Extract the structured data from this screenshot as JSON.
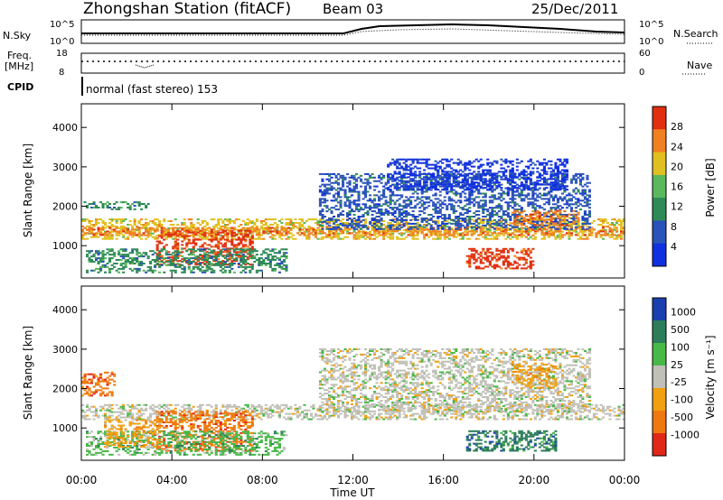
{
  "header": {
    "title": "Zhongshan Station (fitACF)",
    "beam": "Beam 03",
    "date": "25/Dec/2011"
  },
  "top_panels": {
    "nsky_label": "N.Sky",
    "nsearch_label": "N.Search",
    "freq_label_1": "Freq.",
    "freq_label_2": "[MHz]",
    "nave_label": "Nave",
    "cpid_label": "CPID",
    "cpid_text": "normal (fast stereo) 153",
    "noise_ticks_left": [
      "10^5",
      "10^0"
    ],
    "noise_ticks_right": [
      "10^5",
      "10^0"
    ],
    "freq_ticks": [
      "18",
      "8"
    ],
    "nave_ticks": [
      "60",
      "0"
    ]
  },
  "power_panel": {
    "ylabel": "Slant Range [km]",
    "yticks": [
      "1000",
      "2000",
      "3000",
      "4000"
    ],
    "colorbar_label": "Power [dB]",
    "colorbar_ticks": [
      "4",
      "8",
      "12",
      "16",
      "20",
      "24",
      "28"
    ]
  },
  "velocity_panel": {
    "ylabel": "Slant Range [km]",
    "yticks": [
      "1000",
      "2000",
      "3000",
      "4000"
    ],
    "colorbar_label": "Velocity [m s⁻¹]",
    "colorbar_ticks": [
      "1000",
      "500",
      "100",
      "25",
      "-25",
      "-100",
      "-500",
      "-1000"
    ]
  },
  "xaxis": {
    "label": "Time UT",
    "ticks": [
      "00:00",
      "04:00",
      "08:00",
      "12:00",
      "16:00",
      "20:00",
      "00:00"
    ]
  },
  "chart_data": {
    "type": "heatmap",
    "x_range_hours": [
      0,
      24
    ],
    "y_range_km": [
      180,
      4600
    ],
    "power_colors": [
      "#1030e0",
      "#2a52b8",
      "#2e8b57",
      "#5cb85c",
      "#e0c020",
      "#f08020",
      "#e03010"
    ],
    "velocity_colors": [
      "#1a3fb0",
      "#2e7d5a",
      "#48b848",
      "#c0c0b8",
      "#f0a010",
      "#f07810",
      "#e02818"
    ],
    "power_regions": [
      {
        "t0": 0.0,
        "t1": 24.0,
        "r0": 1150,
        "r1": 1650,
        "level": 4
      },
      {
        "t0": 0.0,
        "t1": 24.0,
        "r0": 1250,
        "r1": 1450,
        "level": 5
      },
      {
        "t0": 3.3,
        "t1": 7.5,
        "r0": 500,
        "r1": 1400,
        "level": 6
      },
      {
        "t0": 0.2,
        "t1": 9.0,
        "r0": 300,
        "r1": 900,
        "level": 2
      },
      {
        "t0": 10.5,
        "t1": 22.5,
        "r0": 1400,
        "r1": 2800,
        "level": 1
      },
      {
        "t0": 13.5,
        "t1": 21.5,
        "r0": 2400,
        "r1": 3200,
        "level": 0
      },
      {
        "t0": 17.0,
        "t1": 20.0,
        "r0": 400,
        "r1": 900,
        "level": 6
      },
      {
        "t0": 19.0,
        "t1": 22.0,
        "r0": 1500,
        "r1": 1900,
        "level": 5
      },
      {
        "t0": 0.1,
        "t1": 3.0,
        "r0": 1900,
        "r1": 2100,
        "level": 2
      }
    ],
    "velocity_regions": [
      {
        "t0": 0.0,
        "t1": 24.0,
        "r0": 1200,
        "r1": 1600,
        "level": 3
      },
      {
        "t0": 3.3,
        "t1": 7.5,
        "r0": 400,
        "r1": 1400,
        "level": 5
      },
      {
        "t0": 0.2,
        "t1": 9.0,
        "r0": 300,
        "r1": 900,
        "level": 2
      },
      {
        "t0": 1.0,
        "t1": 3.5,
        "r0": 500,
        "r1": 1200,
        "level": 4
      },
      {
        "t0": 10.5,
        "t1": 22.5,
        "r0": 1400,
        "r1": 3000,
        "level": 3
      },
      {
        "t0": 17.0,
        "t1": 21.0,
        "r0": 400,
        "r1": 900,
        "level": 1
      },
      {
        "t0": 19.0,
        "t1": 21.0,
        "r0": 2000,
        "r1": 2600,
        "level": 4
      },
      {
        "t0": 0.0,
        "t1": 1.5,
        "r0": 1800,
        "r1": 2400,
        "level": 5
      }
    ]
  }
}
